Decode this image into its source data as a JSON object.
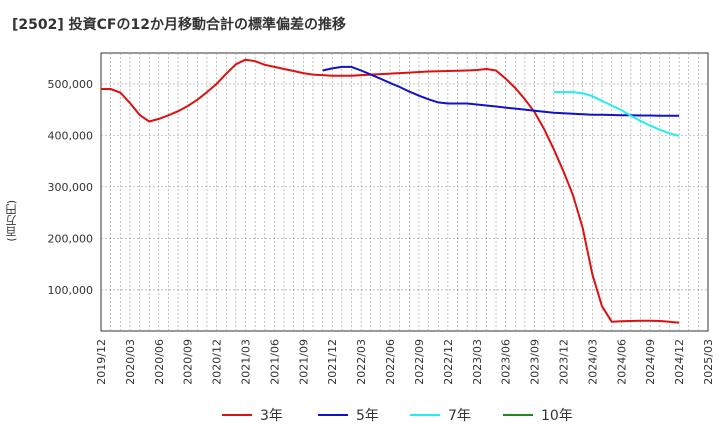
{
  "title": "[2502]  投資CFの12か月移動合計の標準偏差の推移",
  "chart_data": {
    "type": "line",
    "title": "[2502]  投資CFの12か月移動合計の標準偏差の推移",
    "ylabel": "(百万円)",
    "xlabel": "",
    "ylim": [
      20000,
      560000
    ],
    "y_ticks": [
      100000,
      200000,
      300000,
      400000,
      500000
    ],
    "y_tick_labels": [
      "100,000",
      "200,000",
      "300,000",
      "400,000",
      "500,000"
    ],
    "x_ticks": [
      "2019/12",
      "2020/03",
      "2020/06",
      "2020/09",
      "2020/12",
      "2021/03",
      "2021/06",
      "2021/09",
      "2021/12",
      "2022/03",
      "2022/06",
      "2022/09",
      "2022/12",
      "2023/03",
      "2023/06",
      "2023/09",
      "2023/12",
      "2024/03",
      "2024/06",
      "2024/09",
      "2024/12",
      "2025/03"
    ],
    "grid": true,
    "legend_position": "bottom",
    "series": [
      {
        "name": "3年",
        "color": "#dd1111",
        "points": [
          [
            "2019/12",
            490000
          ],
          [
            "2020/01",
            490000
          ],
          [
            "2020/02",
            483000
          ],
          [
            "2020/03",
            463000
          ],
          [
            "2020/04",
            440000
          ],
          [
            "2020/05",
            427000
          ],
          [
            "2020/06",
            432000
          ],
          [
            "2020/07",
            439000
          ],
          [
            "2020/08",
            447000
          ],
          [
            "2020/09",
            457000
          ],
          [
            "2020/10",
            469000
          ],
          [
            "2020/11",
            484000
          ],
          [
            "2020/12",
            500000
          ],
          [
            "2021/01",
            520000
          ],
          [
            "2021/02",
            538000
          ],
          [
            "2021/03",
            547000
          ],
          [
            "2021/04",
            544000
          ],
          [
            "2021/05",
            537000
          ],
          [
            "2021/06",
            533000
          ],
          [
            "2021/07",
            529000
          ],
          [
            "2021/08",
            525000
          ],
          [
            "2021/09",
            521000
          ],
          [
            "2021/10",
            518000
          ],
          [
            "2021/11",
            517000
          ],
          [
            "2021/12",
            516000
          ],
          [
            "2022/01",
            516000
          ],
          [
            "2022/02",
            516000
          ],
          [
            "2022/03",
            517000
          ],
          [
            "2022/04",
            518000
          ],
          [
            "2022/05",
            519000
          ],
          [
            "2022/06",
            520000
          ],
          [
            "2022/07",
            521000
          ],
          [
            "2022/08",
            522000
          ],
          [
            "2022/09",
            523000
          ],
          [
            "2022/10",
            524000
          ],
          [
            "2022/11",
            524500
          ],
          [
            "2022/12",
            525000
          ],
          [
            "2023/01",
            525500
          ],
          [
            "2023/02",
            526000
          ],
          [
            "2023/03",
            527000
          ],
          [
            "2023/04",
            529000
          ],
          [
            "2023/05",
            526000
          ],
          [
            "2023/06",
            510000
          ],
          [
            "2023/07",
            492000
          ],
          [
            "2023/08",
            470000
          ],
          [
            "2023/09",
            445000
          ],
          [
            "2023/10",
            412000
          ],
          [
            "2023/11",
            373000
          ],
          [
            "2023/12",
            330000
          ],
          [
            "2024/01",
            283000
          ],
          [
            "2024/02",
            220000
          ],
          [
            "2024/03",
            130000
          ],
          [
            "2024/04",
            68000
          ],
          [
            "2024/05",
            38000
          ],
          [
            "2024/06",
            39000
          ],
          [
            "2024/07",
            39500
          ],
          [
            "2024/08",
            40000
          ],
          [
            "2024/09",
            40000
          ],
          [
            "2024/10",
            39500
          ],
          [
            "2024/11",
            38000
          ],
          [
            "2024/12",
            36000
          ]
        ]
      },
      {
        "name": "5年",
        "color": "#1111cc",
        "points": [
          [
            "2021/11",
            526000
          ],
          [
            "2021/12",
            530000
          ],
          [
            "2022/01",
            533000
          ],
          [
            "2022/02",
            533000
          ],
          [
            "2022/03",
            526000
          ],
          [
            "2022/04",
            518000
          ],
          [
            "2022/05",
            510000
          ],
          [
            "2022/06",
            502000
          ],
          [
            "2022/07",
            494000
          ],
          [
            "2022/08",
            485000
          ],
          [
            "2022/09",
            477000
          ],
          [
            "2022/10",
            470000
          ],
          [
            "2022/11",
            464000
          ],
          [
            "2022/12",
            462000
          ],
          [
            "2023/01",
            462000
          ],
          [
            "2023/02",
            462000
          ],
          [
            "2023/03",
            460000
          ],
          [
            "2023/04",
            458000
          ],
          [
            "2023/05",
            456000
          ],
          [
            "2023/06",
            454000
          ],
          [
            "2023/07",
            452000
          ],
          [
            "2023/08",
            450000
          ],
          [
            "2023/09",
            448000
          ],
          [
            "2023/10",
            446000
          ],
          [
            "2023/11",
            444000
          ],
          [
            "2023/12",
            443000
          ],
          [
            "2024/01",
            442000
          ],
          [
            "2024/02",
            441000
          ],
          [
            "2024/03",
            440000
          ],
          [
            "2024/04",
            440000
          ],
          [
            "2024/05",
            439500
          ],
          [
            "2024/06",
            439000
          ],
          [
            "2024/07",
            439000
          ],
          [
            "2024/08",
            438500
          ],
          [
            "2024/09",
            438500
          ],
          [
            "2024/10",
            438000
          ],
          [
            "2024/11",
            438000
          ],
          [
            "2024/12",
            438000
          ]
        ]
      },
      {
        "name": "7年",
        "color": "#22eeee",
        "points": [
          [
            "2023/11",
            484000
          ],
          [
            "2023/12",
            484000
          ],
          [
            "2024/01",
            484000
          ],
          [
            "2024/02",
            482000
          ],
          [
            "2024/03",
            476000
          ],
          [
            "2024/04",
            467000
          ],
          [
            "2024/05",
            458000
          ],
          [
            "2024/06",
            449000
          ],
          [
            "2024/07",
            438000
          ],
          [
            "2024/08",
            428000
          ],
          [
            "2024/09",
            419000
          ],
          [
            "2024/10",
            411000
          ],
          [
            "2024/11",
            404000
          ],
          [
            "2024/12",
            399000
          ]
        ]
      },
      {
        "name": "10年",
        "color": "#228822",
        "points": []
      }
    ]
  }
}
